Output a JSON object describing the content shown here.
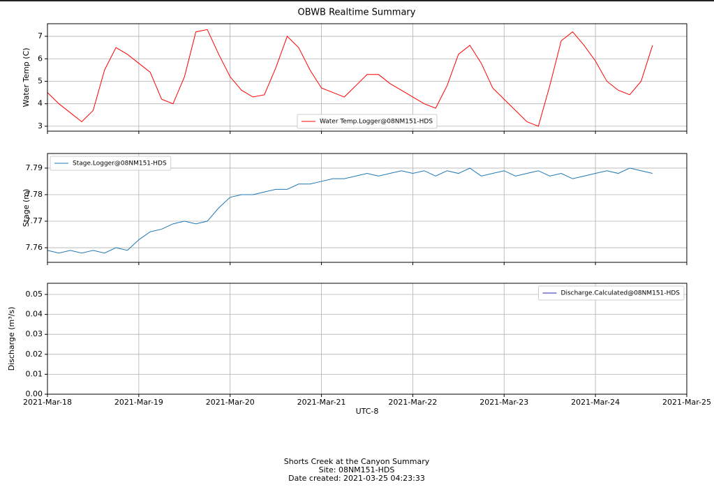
{
  "title": "OBWB Realtime Summary",
  "footer": {
    "lines": [
      "Shorts Creek at the Canyon Summary",
      "Site: 08NM151-HDS",
      "Date created: 2021-03-25 04:23:33"
    ]
  },
  "chart_data": [
    {
      "type": "line",
      "ylabel": "Water Temp (C)",
      "x": [
        "2021-03-18T00:00",
        "2021-03-18T03:00",
        "2021-03-18T06:00",
        "2021-03-18T09:00",
        "2021-03-18T12:00",
        "2021-03-18T15:00",
        "2021-03-18T18:00",
        "2021-03-18T21:00",
        "2021-03-19T00:00",
        "2021-03-19T03:00",
        "2021-03-19T06:00",
        "2021-03-19T09:00",
        "2021-03-19T12:00",
        "2021-03-19T15:00",
        "2021-03-19T18:00",
        "2021-03-19T21:00",
        "2021-03-20T00:00",
        "2021-03-20T03:00",
        "2021-03-20T06:00",
        "2021-03-20T09:00",
        "2021-03-20T12:00",
        "2021-03-20T15:00",
        "2021-03-20T18:00",
        "2021-03-20T21:00",
        "2021-03-21T00:00",
        "2021-03-21T03:00",
        "2021-03-21T06:00",
        "2021-03-21T09:00",
        "2021-03-21T12:00",
        "2021-03-21T15:00",
        "2021-03-21T18:00",
        "2021-03-21T21:00",
        "2021-03-22T00:00",
        "2021-03-22T03:00",
        "2021-03-22T06:00",
        "2021-03-22T09:00",
        "2021-03-22T12:00",
        "2021-03-22T15:00",
        "2021-03-22T18:00",
        "2021-03-22T21:00",
        "2021-03-23T00:00",
        "2021-03-23T03:00",
        "2021-03-23T06:00",
        "2021-03-23T09:00",
        "2021-03-23T12:00",
        "2021-03-23T15:00",
        "2021-03-23T18:00",
        "2021-03-23T21:00",
        "2021-03-24T00:00",
        "2021-03-24T03:00",
        "2021-03-24T06:00",
        "2021-03-24T09:00",
        "2021-03-24T12:00",
        "2021-03-24T15:00"
      ],
      "series": [
        {
          "name": "Water Temp.Logger@08NM151-HDS",
          "color": "#ff0000",
          "values": [
            4.5,
            4.0,
            3.6,
            3.2,
            3.7,
            5.5,
            6.5,
            6.2,
            5.8,
            5.4,
            4.2,
            4.0,
            5.2,
            7.2,
            7.3,
            6.2,
            5.2,
            4.6,
            4.3,
            4.4,
            5.6,
            7.0,
            6.5,
            5.5,
            4.7,
            4.5,
            4.3,
            4.8,
            5.3,
            5.3,
            4.9,
            4.6,
            4.3,
            4.0,
            3.8,
            4.8,
            6.2,
            6.6,
            5.8,
            4.7,
            4.2,
            3.7,
            3.2,
            3.0,
            4.8,
            6.8,
            7.2,
            6.6,
            5.9,
            5.0,
            4.6,
            4.4,
            5.0,
            6.6
          ]
        }
      ],
      "xlim": [
        "2021-03-18T00:00",
        "2021-03-25T00:00"
      ],
      "xticks": [
        "2021-03-18T00:00",
        "2021-03-19T00:00",
        "2021-03-20T00:00",
        "2021-03-21T00:00",
        "2021-03-22T00:00",
        "2021-03-23T00:00",
        "2021-03-24T00:00",
        "2021-03-25T00:00"
      ],
      "ylim": [
        2.78,
        7.56
      ],
      "yticks": [
        3,
        4,
        5,
        6,
        7
      ],
      "grid": true,
      "legend": "lower center"
    },
    {
      "type": "line",
      "ylabel": "Stage (m)",
      "x": [
        "2021-03-18T00:00",
        "2021-03-18T03:00",
        "2021-03-18T06:00",
        "2021-03-18T09:00",
        "2021-03-18T12:00",
        "2021-03-18T15:00",
        "2021-03-18T18:00",
        "2021-03-18T21:00",
        "2021-03-19T00:00",
        "2021-03-19T03:00",
        "2021-03-19T06:00",
        "2021-03-19T09:00",
        "2021-03-19T12:00",
        "2021-03-19T15:00",
        "2021-03-19T18:00",
        "2021-03-19T21:00",
        "2021-03-20T00:00",
        "2021-03-20T03:00",
        "2021-03-20T06:00",
        "2021-03-20T09:00",
        "2021-03-20T12:00",
        "2021-03-20T15:00",
        "2021-03-20T18:00",
        "2021-03-20T21:00",
        "2021-03-21T00:00",
        "2021-03-21T03:00",
        "2021-03-21T06:00",
        "2021-03-21T09:00",
        "2021-03-21T12:00",
        "2021-03-21T15:00",
        "2021-03-21T18:00",
        "2021-03-21T21:00",
        "2021-03-22T00:00",
        "2021-03-22T03:00",
        "2021-03-22T06:00",
        "2021-03-22T09:00",
        "2021-03-22T12:00",
        "2021-03-22T15:00",
        "2021-03-22T18:00",
        "2021-03-22T21:00",
        "2021-03-23T00:00",
        "2021-03-23T03:00",
        "2021-03-23T06:00",
        "2021-03-23T09:00",
        "2021-03-23T12:00",
        "2021-03-23T15:00",
        "2021-03-23T18:00",
        "2021-03-23T21:00",
        "2021-03-24T00:00",
        "2021-03-24T03:00",
        "2021-03-24T06:00",
        "2021-03-24T09:00",
        "2021-03-24T12:00",
        "2021-03-24T15:00"
      ],
      "series": [
        {
          "name": "Stage.Logger@08NM151-HDS",
          "color": "#1f77b4",
          "values": [
            7.759,
            7.758,
            7.759,
            7.758,
            7.759,
            7.758,
            7.76,
            7.759,
            7.763,
            7.766,
            7.767,
            7.769,
            7.77,
            7.769,
            7.77,
            7.775,
            7.779,
            7.78,
            7.78,
            7.781,
            7.782,
            7.782,
            7.784,
            7.784,
            7.785,
            7.786,
            7.786,
            7.787,
            7.788,
            7.787,
            7.788,
            7.789,
            7.788,
            7.789,
            7.787,
            7.789,
            7.788,
            7.79,
            7.787,
            7.788,
            7.789,
            7.787,
            7.788,
            7.789,
            7.787,
            7.788,
            7.786,
            7.787,
            7.788,
            7.789,
            7.788,
            7.79,
            7.789,
            7.788
          ]
        }
      ],
      "xlim": [
        "2021-03-18T00:00",
        "2021-03-25T00:00"
      ],
      "xticks": [
        "2021-03-18T00:00",
        "2021-03-19T00:00",
        "2021-03-20T00:00",
        "2021-03-21T00:00",
        "2021-03-22T00:00",
        "2021-03-23T00:00",
        "2021-03-24T00:00",
        "2021-03-25T00:00"
      ],
      "ylim": [
        7.7545,
        7.7955
      ],
      "yticks": [
        7.76,
        7.77,
        7.78,
        7.79
      ],
      "grid": true,
      "legend": "upper left"
    },
    {
      "type": "line",
      "ylabel": "Discharge (m³/s)",
      "xlabel": "UTC-8",
      "x": [],
      "series": [
        {
          "name": "Discharge.Calculated@08NM151-HDS",
          "color": "#2424b8",
          "values": []
        }
      ],
      "xlim": [
        "2021-03-18T00:00",
        "2021-03-25T00:00"
      ],
      "xticks": [
        {
          "value": "2021-03-18T00:00",
          "label": "2021-Mar-18"
        },
        {
          "value": "2021-03-19T00:00",
          "label": "2021-Mar-19"
        },
        {
          "value": "2021-03-20T00:00",
          "label": "2021-Mar-20"
        },
        {
          "value": "2021-03-21T00:00",
          "label": "2021-Mar-21"
        },
        {
          "value": "2021-03-22T00:00",
          "label": "2021-Mar-22"
        },
        {
          "value": "2021-03-23T00:00",
          "label": "2021-Mar-23"
        },
        {
          "value": "2021-03-24T00:00",
          "label": "2021-Mar-24"
        },
        {
          "value": "2021-03-25T00:00",
          "label": "2021-Mar-25"
        }
      ],
      "ylim": [
        0,
        0.0556
      ],
      "yticks": [
        {
          "value": 0,
          "label": "0.00"
        },
        0.01,
        0.02,
        0.03,
        0.04,
        0.05
      ],
      "grid": true,
      "legend": "upper right"
    }
  ]
}
